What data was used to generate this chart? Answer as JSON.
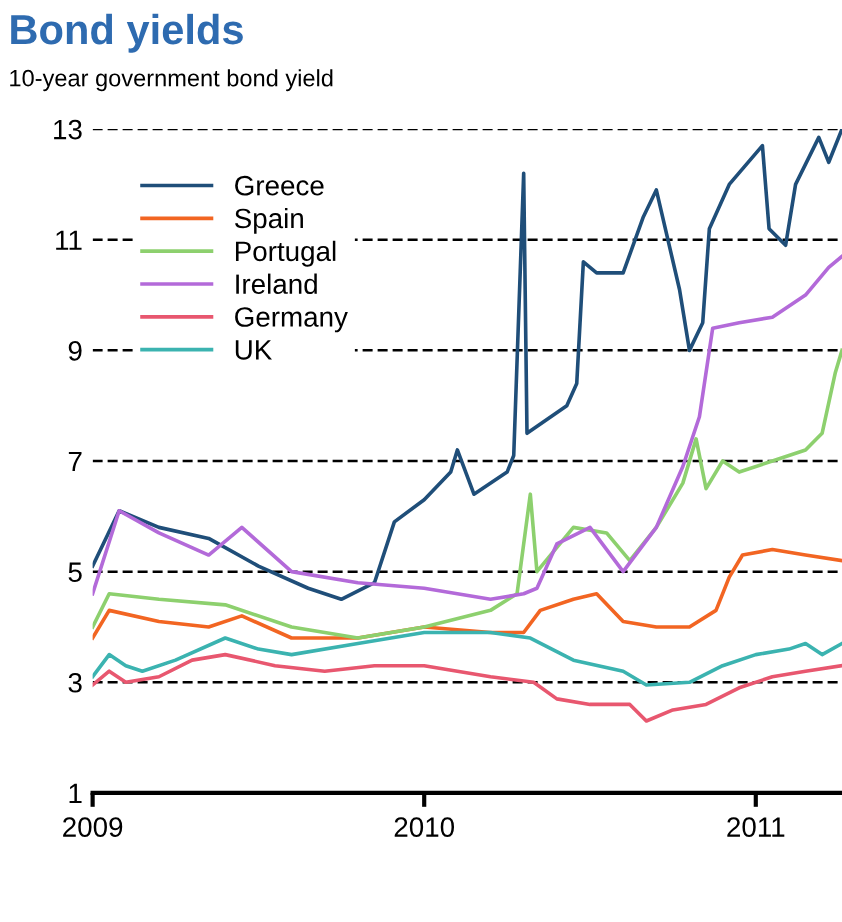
{
  "chart_data": {
    "type": "line",
    "title": "Bond yields",
    "subtitle": "10-year government bond yield",
    "xlim": [
      2009,
      2011.26
    ],
    "xticks": [
      2009,
      2010,
      2011
    ],
    "ylim": [
      1,
      13
    ],
    "yticks": [
      1,
      3,
      5,
      7,
      9,
      11,
      13
    ],
    "grid": "y",
    "legend": "top left",
    "line_style": "solid",
    "marker": "none",
    "series": [
      {
        "name": "Greece",
        "color": "#1f4e79",
        "x": [
          2009.0,
          2009.08,
          2009.2,
          2009.35,
          2009.5,
          2009.65,
          2009.75,
          2009.85,
          2009.91,
          2010.0,
          2010.08,
          2010.1,
          2010.15,
          2010.25,
          2010.27,
          2010.29,
          2010.3,
          2010.31,
          2010.43,
          2010.46,
          2010.48,
          2010.52,
          2010.6,
          2010.66,
          2010.7,
          2010.77,
          2010.8,
          2010.84,
          2010.86,
          2010.92,
          2011.02,
          2011.04,
          2011.09,
          2011.12,
          2011.19,
          2011.22,
          2011.26
        ],
        "values": [
          5.1,
          6.1,
          5.8,
          5.6,
          5.1,
          4.7,
          4.5,
          4.8,
          5.9,
          6.3,
          6.8,
          7.2,
          6.4,
          6.8,
          7.1,
          10.5,
          12.2,
          7.5,
          8.0,
          8.4,
          10.6,
          10.4,
          10.4,
          11.4,
          11.9,
          10.1,
          9.0,
          9.5,
          11.2,
          12.0,
          12.7,
          11.2,
          10.9,
          12.0,
          12.85,
          12.4,
          13.0
        ]
      },
      {
        "name": "Spain",
        "color": "#f26522",
        "x": [
          2009.0,
          2009.05,
          2009.2,
          2009.35,
          2009.45,
          2009.6,
          2009.8,
          2010.0,
          2010.2,
          2010.3,
          2010.35,
          2010.45,
          2010.52,
          2010.6,
          2010.7,
          2010.8,
          2010.88,
          2010.92,
          2010.96,
          2011.05,
          2011.15,
          2011.26
        ],
        "values": [
          3.8,
          4.3,
          4.1,
          4.0,
          4.2,
          3.8,
          3.8,
          4.0,
          3.9,
          3.9,
          4.3,
          4.5,
          4.6,
          4.1,
          4.0,
          4.0,
          4.3,
          4.9,
          5.3,
          5.4,
          5.3,
          5.2
        ]
      },
      {
        "name": "Portugal",
        "color": "#8dd06e",
        "x": [
          2009.0,
          2009.05,
          2009.2,
          2009.4,
          2009.6,
          2009.8,
          2010.0,
          2010.2,
          2010.28,
          2010.32,
          2010.34,
          2010.45,
          2010.55,
          2010.62,
          2010.7,
          2010.78,
          2010.82,
          2010.85,
          2010.9,
          2010.95,
          2011.05,
          2011.15,
          2011.2,
          2011.24,
          2011.26
        ],
        "values": [
          4.0,
          4.6,
          4.5,
          4.4,
          4.0,
          3.8,
          4.0,
          4.3,
          4.6,
          6.4,
          5.0,
          5.8,
          5.7,
          5.2,
          5.8,
          6.6,
          7.4,
          6.5,
          7.0,
          6.8,
          7.0,
          7.2,
          7.5,
          8.6,
          9.0
        ]
      },
      {
        "name": "Ireland",
        "color": "#b36ad9",
        "x": [
          2009.0,
          2009.08,
          2009.2,
          2009.35,
          2009.45,
          2009.6,
          2009.8,
          2010.0,
          2010.2,
          2010.3,
          2010.34,
          2010.4,
          2010.5,
          2010.6,
          2010.7,
          2010.78,
          2010.83,
          2010.87,
          2010.95,
          2011.05,
          2011.15,
          2011.22,
          2011.26
        ],
        "values": [
          4.6,
          6.1,
          5.7,
          5.3,
          5.8,
          5.0,
          4.8,
          4.7,
          4.5,
          4.6,
          4.7,
          5.5,
          5.8,
          5.0,
          5.8,
          6.9,
          7.8,
          9.4,
          9.5,
          9.6,
          10.0,
          10.5,
          10.7
        ]
      },
      {
        "name": "Germany",
        "color": "#e8576f",
        "x": [
          2009.0,
          2009.05,
          2009.1,
          2009.2,
          2009.3,
          2009.4,
          2009.55,
          2009.7,
          2009.85,
          2010.0,
          2010.2,
          2010.33,
          2010.4,
          2010.5,
          2010.62,
          2010.67,
          2010.75,
          2010.85,
          2010.95,
          2011.05,
          2011.15,
          2011.26
        ],
        "values": [
          2.95,
          3.2,
          3.0,
          3.1,
          3.4,
          3.5,
          3.3,
          3.2,
          3.3,
          3.3,
          3.1,
          3.0,
          2.7,
          2.6,
          2.6,
          2.3,
          2.5,
          2.6,
          2.9,
          3.1,
          3.2,
          3.3
        ]
      },
      {
        "name": "UK",
        "color": "#3bb3b0",
        "x": [
          2009.0,
          2009.05,
          2009.1,
          2009.15,
          2009.25,
          2009.4,
          2009.5,
          2009.6,
          2009.8,
          2010.0,
          2010.2,
          2010.32,
          2010.45,
          2010.6,
          2010.67,
          2010.8,
          2010.9,
          2011.0,
          2011.1,
          2011.15,
          2011.2,
          2011.26
        ],
        "values": [
          3.1,
          3.5,
          3.3,
          3.2,
          3.4,
          3.8,
          3.6,
          3.5,
          3.7,
          3.9,
          3.9,
          3.8,
          3.4,
          3.2,
          2.95,
          3.0,
          3.3,
          3.5,
          3.6,
          3.7,
          3.5,
          3.7
        ]
      }
    ]
  }
}
